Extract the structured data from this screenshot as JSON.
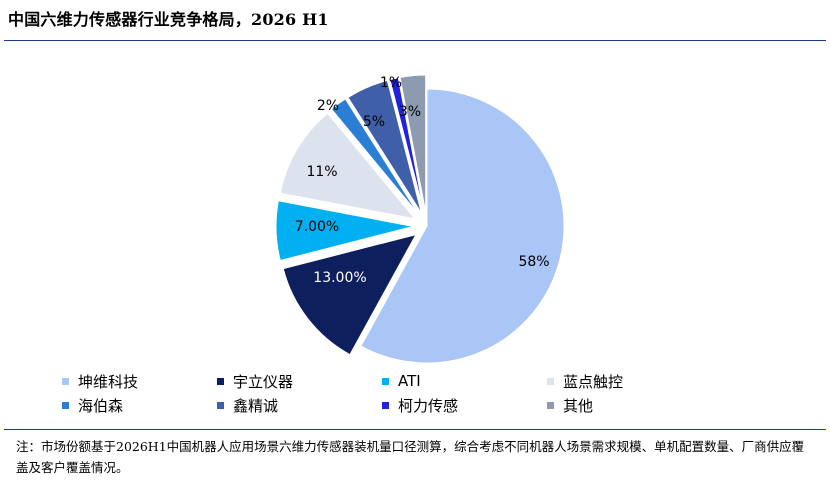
{
  "header": {
    "title": "中国六维力传感器行业竞争格局，2026 H1"
  },
  "chart_data": {
    "type": "pie",
    "title": "中国六维力传感器行业竞争格局，2026 H1",
    "start_angle_deg": 0,
    "direction": "clockwise",
    "slices": [
      {
        "name": "坤维科技",
        "value": 58,
        "label": "58%",
        "color": "#a9c6f6",
        "label_color": "#000000",
        "exploded": false
      },
      {
        "name": "宇立仪器",
        "value": 13,
        "label": "13.00%",
        "color": "#0d1f5c",
        "label_color": "#ffffff",
        "exploded": true
      },
      {
        "name": "ATI",
        "value": 7,
        "label": "7.00%",
        "color": "#00b0f0",
        "label_color": "#000000",
        "exploded": true
      },
      {
        "name": "蓝点触控",
        "value": 11,
        "label": "11%",
        "color": "#dde3ee",
        "label_color": "#000000",
        "exploded": true
      },
      {
        "name": "海伯森",
        "value": 2,
        "label": "2%",
        "color": "#2a7fd4",
        "label_color": "#000000",
        "exploded": true
      },
      {
        "name": "鑫精诚",
        "value": 5,
        "label": "5%",
        "color": "#3f5fa8",
        "label_color": "#000000",
        "exploded": true
      },
      {
        "name": "柯力传感",
        "value": 1,
        "label": "1%",
        "color": "#2222dd",
        "label_color": "#000000",
        "exploded": true
      },
      {
        "name": "其他",
        "value": 3,
        "label": "3%",
        "color": "#8c9bb0",
        "label_color": "#000000",
        "exploded": true
      }
    ],
    "legend_position": "bottom"
  },
  "footnote": "注：市场份额基于2026H1中国机器人应用场景六维力传感器装机量口径测算，综合考虑不同机器人场景需求规模、单机配置数量、厂商供应覆盖及客户覆盖情况。"
}
